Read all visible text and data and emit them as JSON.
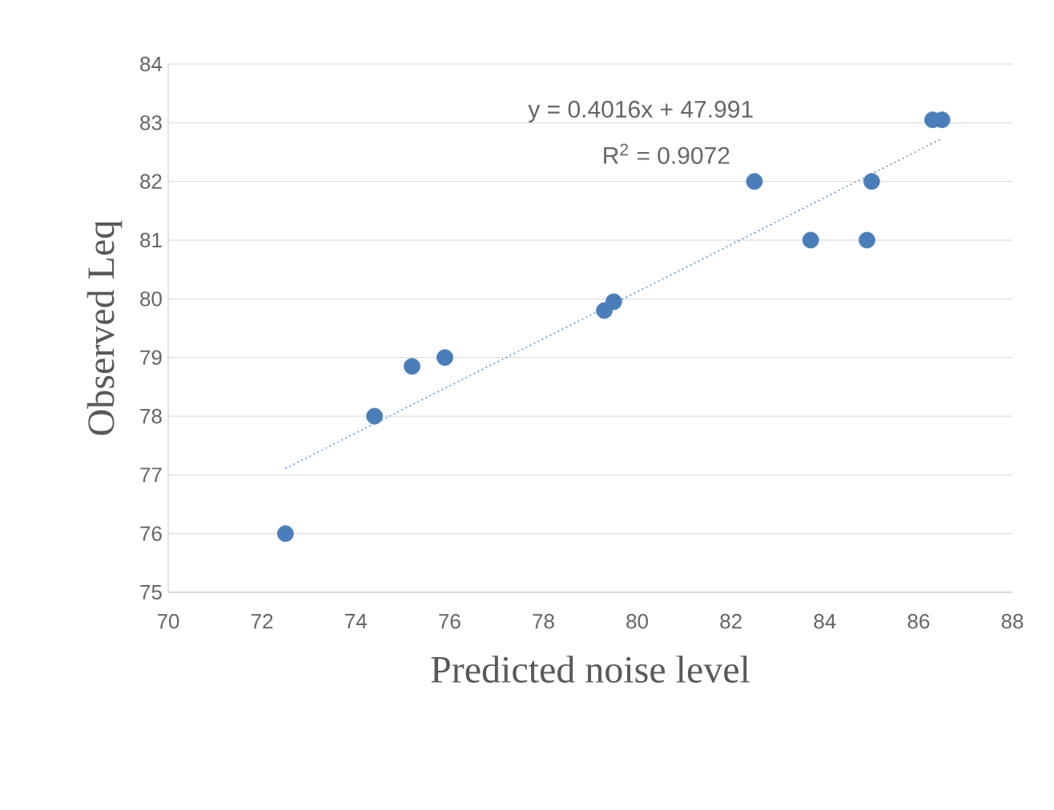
{
  "chart_data": {
    "type": "scatter",
    "xlabel": "Predicted noise level",
    "ylabel": "Observed Leq",
    "annotations": [
      "y = 0.4016x + 47.991",
      "R$^{2}$ = 0.9072"
    ],
    "series": [
      {
        "color": "#4a7ebb",
        "x": [
          72.5,
          74.4,
          75.2,
          75.9,
          79.3,
          79.5,
          82.5,
          83.7,
          84.9,
          85.0,
          86.3,
          86.5
        ],
        "values": [
          76,
          78,
          78.85,
          79,
          79.8,
          79.95,
          82,
          81,
          81,
          82,
          83.05,
          83.05
        ],
        "marker": "circle"
      },
      {
        "type": "line",
        "color": "#4a7ebb",
        "x": [
          72.5,
          86.5
        ],
        "values": [
          77.11,
          82.73
        ],
        "line_style": "dotted",
        "marker": "none"
      }
    ],
    "xlim": [
      70,
      88
    ],
    "ylim": [
      75,
      84
    ],
    "xticks": [
      70,
      72,
      74,
      76,
      78,
      80,
      82,
      84,
      86,
      88
    ],
    "yticks": [
      75,
      76,
      77,
      78,
      79,
      80,
      81,
      82,
      83,
      84
    ],
    "grid": "y"
  }
}
